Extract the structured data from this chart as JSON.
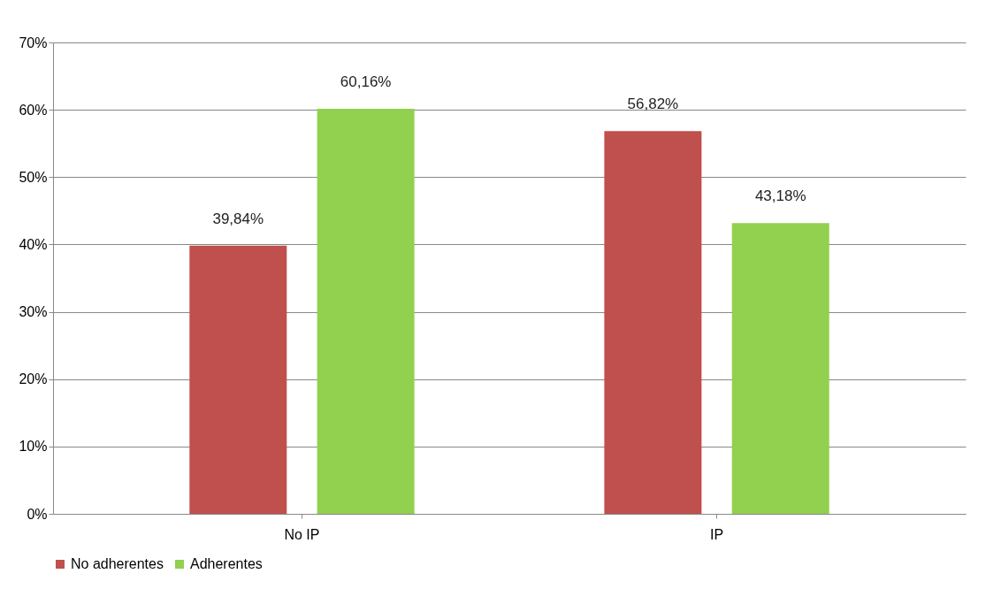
{
  "chart_data": {
    "type": "bar",
    "categories": [
      "No IP",
      "IP"
    ],
    "series": [
      {
        "name": "No adherentes",
        "color": "#c0504d",
        "values": [
          39.84,
          56.82
        ],
        "value_labels": [
          "39,84%",
          "56,82%"
        ]
      },
      {
        "name": "Adherentes",
        "color": "#92d050",
        "values": [
          60.16,
          43.18
        ],
        "value_labels": [
          "60,16%",
          "43,18%"
        ]
      }
    ],
    "ylim": [
      0,
      70
    ],
    "yticks": [
      {
        "value": 0,
        "label": "0%"
      },
      {
        "value": 10,
        "label": "10%"
      },
      {
        "value": 20,
        "label": "20%"
      },
      {
        "value": 30,
        "label": "30%"
      },
      {
        "value": 40,
        "label": "40%"
      },
      {
        "value": 50,
        "label": "50%"
      },
      {
        "value": 60,
        "label": "60%"
      },
      {
        "value": 70,
        "label": "70%"
      }
    ],
    "grid": "y",
    "legend": "bottom"
  }
}
